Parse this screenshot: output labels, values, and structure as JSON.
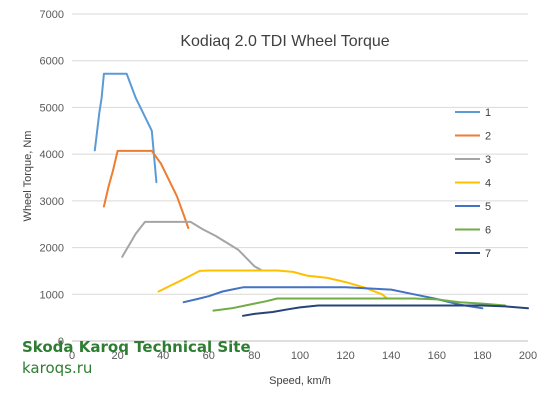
{
  "chart_data": {
    "type": "line",
    "title": "Kodiaq 2.0 TDI Wheel Torque",
    "xlabel": "Speed, km/h",
    "ylabel": "Wheel Torque, Nm",
    "xlim": [
      0,
      200
    ],
    "ylim": [
      0,
      7000
    ],
    "xticks": [
      0,
      20,
      40,
      60,
      80,
      100,
      120,
      140,
      160,
      180,
      200
    ],
    "yticks": [
      0,
      1000,
      2000,
      3000,
      4000,
      5000,
      6000,
      7000
    ],
    "grid": "horizontal",
    "legend_position": "right",
    "series": [
      {
        "name": "1",
        "color": "#5b9bd5",
        "x": [
          10,
          12,
          13,
          14,
          16,
          20,
          24,
          28,
          32,
          35,
          37
        ],
        "y": [
          4080,
          4900,
          5200,
          5720,
          5720,
          5720,
          5720,
          5200,
          4800,
          4500,
          3400
        ]
      },
      {
        "name": "2",
        "color": "#ed7d31",
        "x": [
          14,
          16,
          18,
          20,
          22,
          26,
          30,
          33,
          35,
          39,
          44,
          46,
          49,
          51
        ],
        "y": [
          2880,
          3300,
          3650,
          4070,
          4070,
          4070,
          4070,
          4070,
          4070,
          3800,
          3300,
          3100,
          2700,
          2420
        ]
      },
      {
        "name": "3",
        "color": "#a5a5a5",
        "x": [
          22,
          25,
          28,
          32,
          37,
          42,
          47,
          52,
          57,
          63,
          68,
          73,
          76,
          78,
          80,
          83
        ],
        "y": [
          1800,
          2050,
          2300,
          2550,
          2550,
          2550,
          2550,
          2550,
          2400,
          2250,
          2100,
          1950,
          1800,
          1700,
          1600,
          1520
        ]
      },
      {
        "name": "4",
        "color": "#ffc000",
        "x": [
          38,
          43,
          48,
          52,
          56,
          60,
          70,
          80,
          90,
          97,
          103,
          112,
          120,
          128,
          136,
          138
        ],
        "y": [
          1060,
          1180,
          1300,
          1400,
          1500,
          1510,
          1510,
          1510,
          1510,
          1480,
          1400,
          1350,
          1260,
          1150,
          1000,
          920
        ]
      },
      {
        "name": "5",
        "color": "#4472c4",
        "x": [
          49,
          55,
          60,
          66,
          70,
          75,
          85,
          100,
          120,
          140,
          150,
          160,
          170,
          180
        ],
        "y": [
          830,
          900,
          960,
          1060,
          1100,
          1150,
          1150,
          1150,
          1150,
          1100,
          1000,
          900,
          780,
          700
        ]
      },
      {
        "name": "6",
        "color": "#70ad47",
        "x": [
          62,
          70,
          76,
          80,
          85,
          90,
          110,
          130,
          150,
          160,
          170,
          180,
          190
        ],
        "y": [
          650,
          700,
          760,
          800,
          850,
          910,
          910,
          910,
          910,
          890,
          830,
          800,
          760
        ]
      },
      {
        "name": "7",
        "color": "#264478",
        "x": [
          75,
          80,
          88,
          95,
          100,
          108,
          120,
          140,
          160,
          180,
          190,
          200
        ],
        "y": [
          540,
          580,
          620,
          680,
          720,
          760,
          760,
          760,
          760,
          760,
          740,
          700
        ]
      }
    ]
  },
  "watermark": {
    "line1": "Skoda Karoq Technical Site",
    "line2": "karoqs.ru"
  }
}
